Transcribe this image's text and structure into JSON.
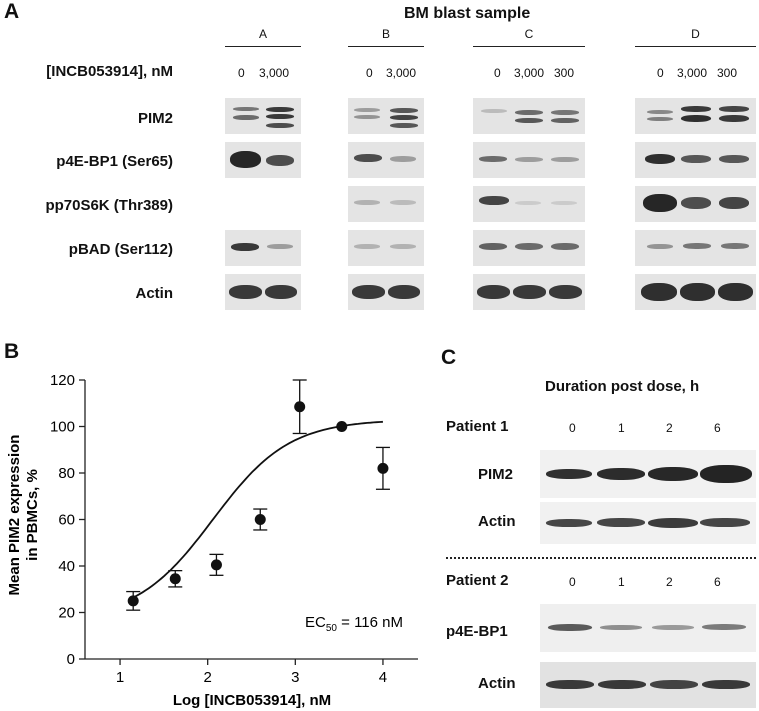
{
  "panel_a": {
    "letter": "A",
    "title": "BM blast sample",
    "samples": [
      "A",
      "B",
      "C",
      "D"
    ],
    "dose_label": "[INCB053914], nM",
    "doses": {
      "A": [
        "0",
        "3,000"
      ],
      "B": [
        "0",
        "3,000"
      ],
      "C": [
        "0",
        "3,000",
        "300"
      ],
      "D": [
        "0",
        "3,000",
        "300"
      ]
    },
    "rows": [
      "PIM2",
      "p4E-BP1 (Ser65)",
      "pp70S6K (Thr389)",
      "pBAD (Ser112)",
      "Actin"
    ]
  },
  "panel_b": {
    "letter": "B",
    "ylabel_line1": "Mean PIM2 expression",
    "ylabel_line2": "in PBMCs, %",
    "xlabel": "Log [INCB053914], nM",
    "ec50_prefix": "EC",
    "ec50_sub": "50",
    "ec50_value": " = 116 nM"
  },
  "chart_data": {
    "type": "scatter",
    "xlabel": "Log [INCB053914], nM",
    "ylabel": "Mean PIM2 expression in PBMCs, %",
    "xlim": [
      0.6,
      4.4
    ],
    "ylim": [
      0,
      120
    ],
    "xticks": [
      1,
      2,
      3,
      4
    ],
    "yticks": [
      0,
      20,
      40,
      60,
      80,
      100,
      120
    ],
    "points": [
      {
        "x": 1.15,
        "y": 25,
        "err": 4
      },
      {
        "x": 1.63,
        "y": 34.5,
        "err": 3.5
      },
      {
        "x": 2.1,
        "y": 40.5,
        "err": 4.5
      },
      {
        "x": 2.6,
        "y": 60,
        "err": 4.5
      },
      {
        "x": 3.05,
        "y": 108.5,
        "err": 11.5
      },
      {
        "x": 3.53,
        "y": 100,
        "err": 0
      },
      {
        "x": 4.0,
        "y": 82,
        "err": 9
      }
    ],
    "fit": {
      "bottom": 17,
      "top": 103,
      "log_ec50": 2.06,
      "hill": 1.0,
      "x_range": [
        1.15,
        4.0
      ]
    },
    "annotation": "EC50 = 116 nM"
  },
  "panel_c": {
    "letter": "C",
    "duration_label": "Duration post dose, h",
    "patient1": "Patient 1",
    "patient2": "Patient 2",
    "times": [
      "0",
      "1",
      "2",
      "6"
    ],
    "rows_p1": [
      "PIM2",
      "Actin"
    ],
    "rows_p2": [
      "p4E-BP1",
      "Actin"
    ]
  }
}
